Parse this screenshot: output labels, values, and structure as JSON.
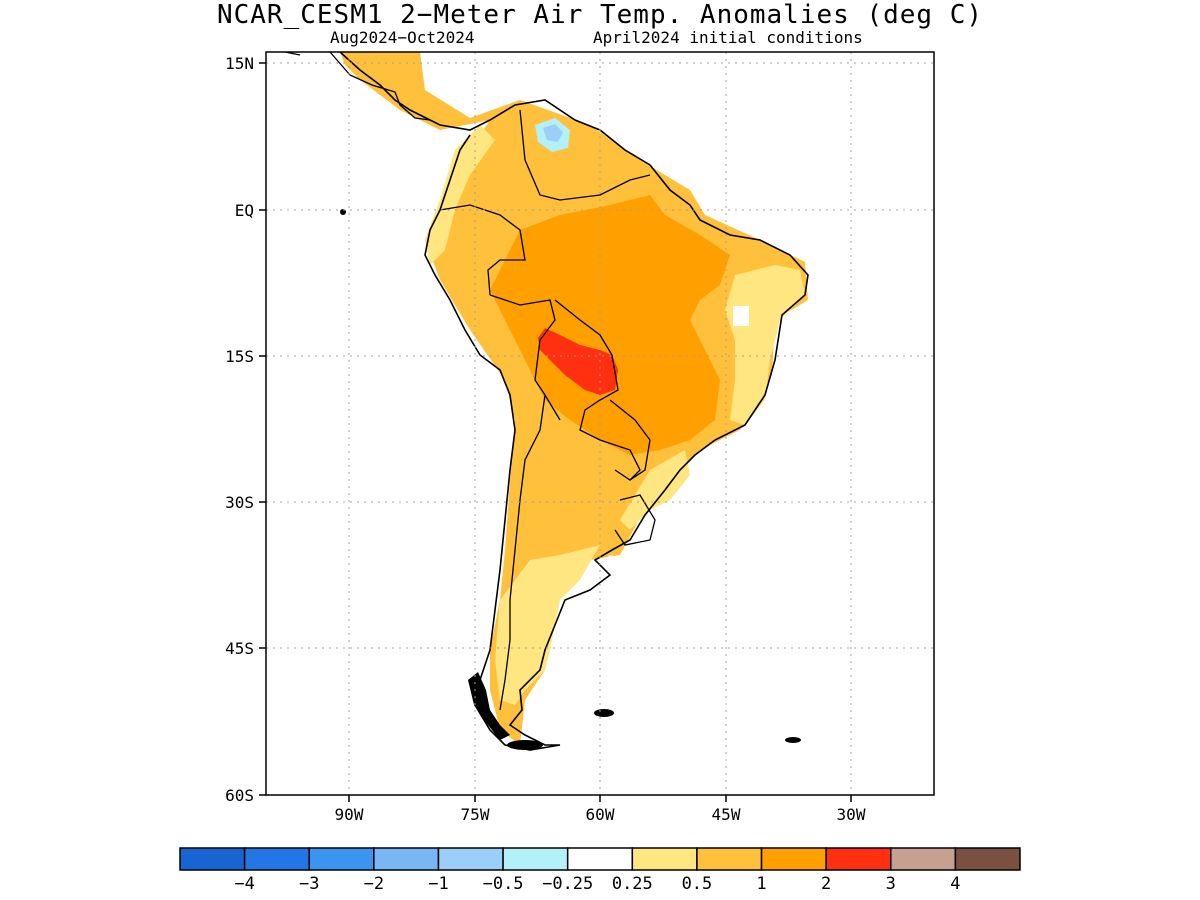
{
  "title": "NCAR_CESM1 2−Meter Air Temp. Anomalies (deg C)",
  "subtitle_left": "Aug2024−Oct2024",
  "subtitle_right": "April2024 initial conditions",
  "lat_labels": [
    "15N",
    "EQ",
    "15S",
    "30S",
    "45S",
    "60S"
  ],
  "lon_labels": [
    "90W",
    "75W",
    "60W",
    "45W",
    "30W"
  ],
  "colorbar": {
    "colors": [
      "#1665d2",
      "#2276e6",
      "#3b94f0",
      "#78b6f5",
      "#9ccff8",
      "#b2f0fa",
      "#ffffff",
      "#ffe680",
      "#ffc03c",
      "#ffa000",
      "#ff3010",
      "#c8a090",
      "#7a5040"
    ],
    "labels": [
      "−4",
      "−3",
      "−2",
      "−1",
      "−0.5",
      "−0.25",
      "0.25",
      "0.5",
      "1",
      "2",
      "3",
      "4"
    ]
  },
  "map": {
    "lon_range": [
      -100,
      -20
    ],
    "lat_range": [
      -60,
      15
    ],
    "colors": {
      "c025_05": "#ffe680",
      "c05_1": "#ffc03c",
      "c1_2": "#ffa000",
      "c2_3": "#ff3010",
      "cneg025": "#b2f0fa",
      "cneg05": "#9ccff8",
      "coast": "#000000",
      "grid": "#a0a0a0"
    }
  }
}
